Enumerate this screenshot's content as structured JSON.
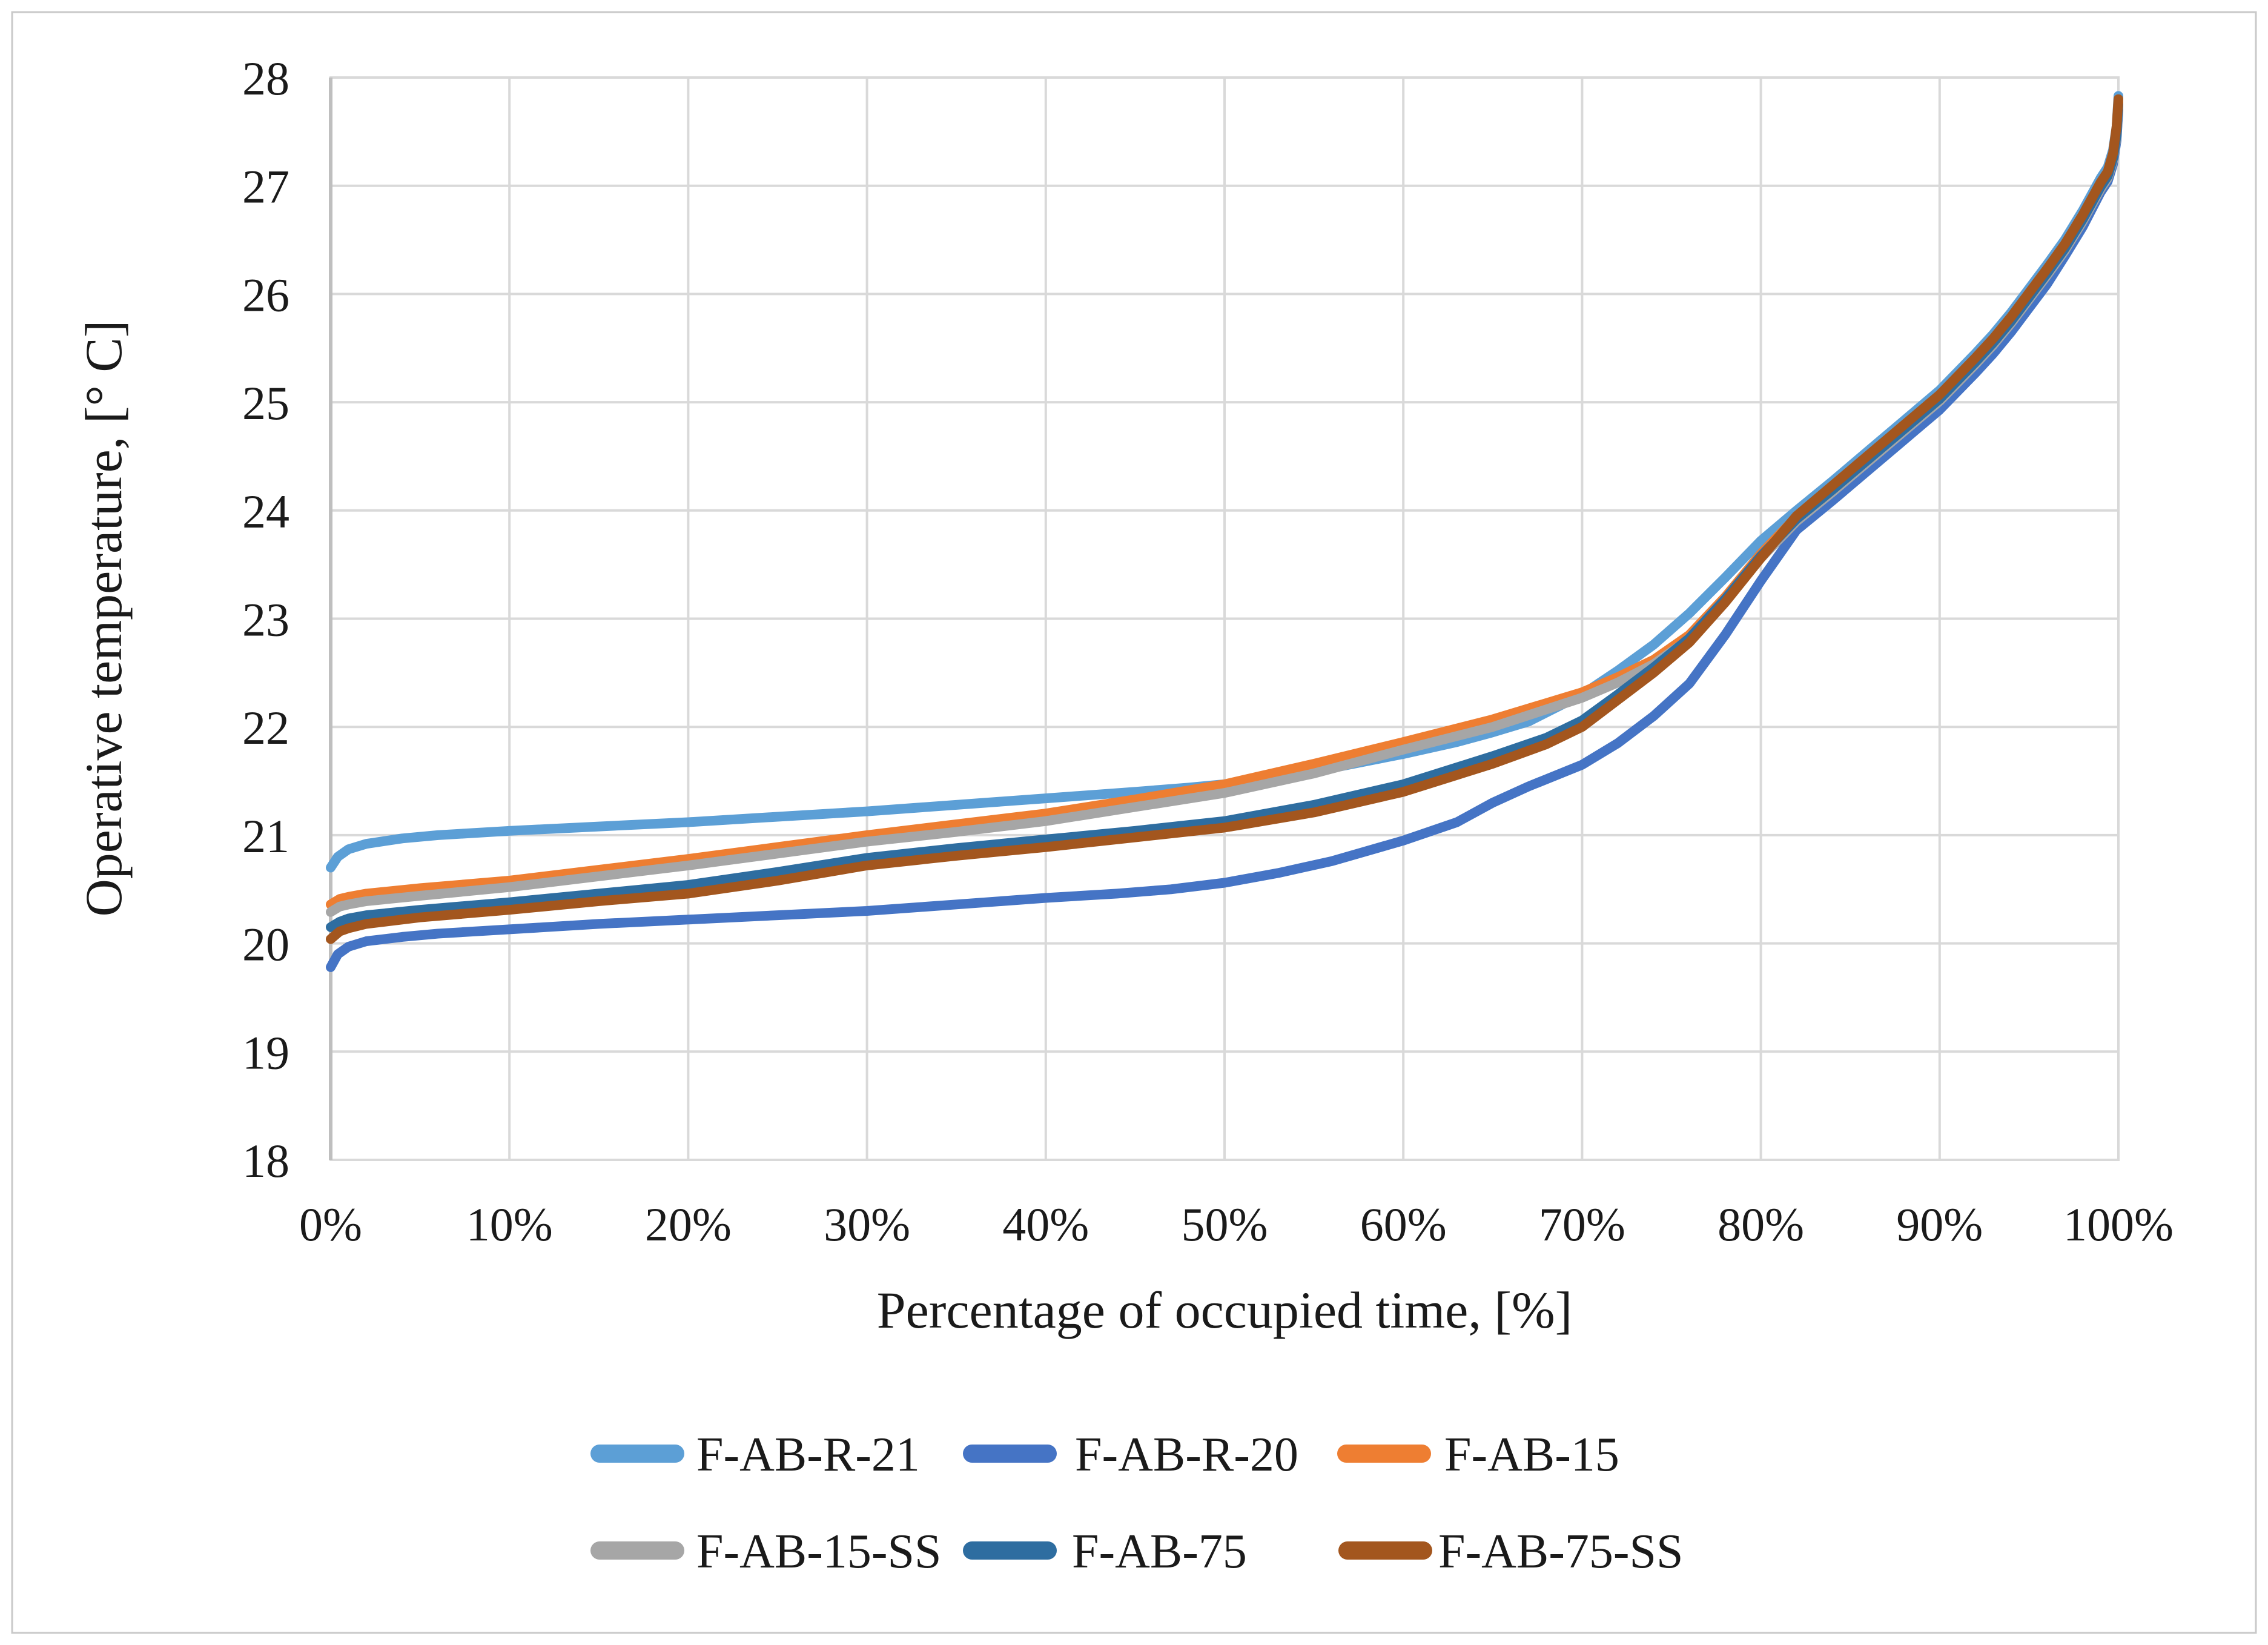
{
  "chart_data": {
    "type": "line",
    "title": "",
    "xlabel": "Percentage of occupied time, [%]",
    "ylabel": "Operative temperature, [° C]",
    "xlim": [
      0,
      100
    ],
    "ylim": [
      18,
      28
    ],
    "grid": "on",
    "legend_position": "bottom",
    "x_ticks": [
      {
        "value": 0,
        "label": "0%"
      },
      {
        "value": 10,
        "label": "10%"
      },
      {
        "value": 20,
        "label": "20%"
      },
      {
        "value": 30,
        "label": "30%"
      },
      {
        "value": 40,
        "label": "40%"
      },
      {
        "value": 50,
        "label": "50%"
      },
      {
        "value": 60,
        "label": "60%"
      },
      {
        "value": 70,
        "label": "70%"
      },
      {
        "value": 80,
        "label": "80%"
      },
      {
        "value": 90,
        "label": "90%"
      },
      {
        "value": 100,
        "label": "100%"
      }
    ],
    "y_ticks": [
      {
        "value": 18,
        "label": "18"
      },
      {
        "value": 19,
        "label": "19"
      },
      {
        "value": 20,
        "label": "20"
      },
      {
        "value": 21,
        "label": "21"
      },
      {
        "value": 22,
        "label": "22"
      },
      {
        "value": 23,
        "label": "23"
      },
      {
        "value": 24,
        "label": "24"
      },
      {
        "value": 25,
        "label": "25"
      },
      {
        "value": 26,
        "label": "26"
      },
      {
        "value": 27,
        "label": "27"
      },
      {
        "value": 28,
        "label": "28"
      }
    ],
    "series": [
      {
        "name": "F-AB-R-21",
        "color": "#5C9FD6",
        "points": [
          [
            0,
            20.7
          ],
          [
            0.4,
            20.8
          ],
          [
            1,
            20.87
          ],
          [
            2,
            20.92
          ],
          [
            4,
            20.97
          ],
          [
            6,
            21.0
          ],
          [
            10,
            21.04
          ],
          [
            15,
            21.08
          ],
          [
            20,
            21.12
          ],
          [
            25,
            21.17
          ],
          [
            30,
            21.22
          ],
          [
            35,
            21.28
          ],
          [
            40,
            21.34
          ],
          [
            45,
            21.4
          ],
          [
            48,
            21.44
          ],
          [
            50,
            21.47
          ],
          [
            53,
            21.52
          ],
          [
            56,
            21.62
          ],
          [
            60,
            21.75
          ],
          [
            63,
            21.86
          ],
          [
            65,
            21.95
          ],
          [
            67,
            22.05
          ],
          [
            70,
            22.3
          ],
          [
            72,
            22.52
          ],
          [
            74,
            22.76
          ],
          [
            76,
            23.05
          ],
          [
            78,
            23.38
          ],
          [
            80,
            23.72
          ],
          [
            82,
            24.0
          ],
          [
            84,
            24.27
          ],
          [
            86,
            24.55
          ],
          [
            88,
            24.83
          ],
          [
            90,
            25.11
          ],
          [
            92,
            25.45
          ],
          [
            93,
            25.63
          ],
          [
            94,
            25.83
          ],
          [
            95,
            26.05
          ],
          [
            96,
            26.27
          ],
          [
            97,
            26.5
          ],
          [
            98,
            26.77
          ],
          [
            99,
            27.07
          ],
          [
            99.4,
            27.17
          ],
          [
            99.7,
            27.33
          ],
          [
            99.9,
            27.55
          ],
          [
            100,
            27.83
          ]
        ]
      },
      {
        "name": "F-AB-R-20",
        "color": "#4574C5",
        "points": [
          [
            0,
            19.78
          ],
          [
            0.4,
            19.9
          ],
          [
            1,
            19.97
          ],
          [
            2,
            20.02
          ],
          [
            4,
            20.06
          ],
          [
            6,
            20.09
          ],
          [
            10,
            20.13
          ],
          [
            15,
            20.18
          ],
          [
            20,
            20.22
          ],
          [
            25,
            20.26
          ],
          [
            30,
            20.3
          ],
          [
            35,
            20.36
          ],
          [
            40,
            20.42
          ],
          [
            44,
            20.46
          ],
          [
            47,
            20.5
          ],
          [
            50,
            20.56
          ],
          [
            53,
            20.65
          ],
          [
            56,
            20.76
          ],
          [
            60,
            20.95
          ],
          [
            63,
            21.12
          ],
          [
            65,
            21.3
          ],
          [
            67,
            21.45
          ],
          [
            70,
            21.65
          ],
          [
            72,
            21.85
          ],
          [
            74,
            22.1
          ],
          [
            76,
            22.4
          ],
          [
            78,
            22.85
          ],
          [
            80,
            23.35
          ],
          [
            82,
            23.82
          ],
          [
            84,
            24.09
          ],
          [
            86,
            24.37
          ],
          [
            88,
            24.65
          ],
          [
            90,
            24.93
          ],
          [
            92,
            25.27
          ],
          [
            93,
            25.45
          ],
          [
            94,
            25.65
          ],
          [
            95,
            25.87
          ],
          [
            96,
            26.09
          ],
          [
            97,
            26.35
          ],
          [
            98,
            26.62
          ],
          [
            99,
            26.94
          ],
          [
            99.4,
            27.04
          ],
          [
            99.7,
            27.2
          ],
          [
            99.9,
            27.42
          ],
          [
            100,
            27.7
          ]
        ]
      },
      {
        "name": "F-AB-15",
        "color": "#EE7E32",
        "points": [
          [
            0,
            20.36
          ],
          [
            0.5,
            20.41
          ],
          [
            1,
            20.43
          ],
          [
            2,
            20.46
          ],
          [
            5,
            20.51
          ],
          [
            10,
            20.58
          ],
          [
            15,
            20.68
          ],
          [
            20,
            20.78
          ],
          [
            25,
            20.89
          ],
          [
            30,
            21.0
          ],
          [
            35,
            21.1
          ],
          [
            40,
            21.2
          ],
          [
            45,
            21.33
          ],
          [
            50,
            21.47
          ],
          [
            55,
            21.66
          ],
          [
            60,
            21.86
          ],
          [
            65,
            22.07
          ],
          [
            70,
            22.32
          ],
          [
            72,
            22.46
          ],
          [
            74,
            22.62
          ],
          [
            76,
            22.85
          ],
          [
            78,
            23.2
          ],
          [
            80,
            23.6
          ],
          [
            82,
            23.94
          ],
          [
            84,
            24.21
          ],
          [
            86,
            24.49
          ],
          [
            88,
            24.77
          ],
          [
            90,
            25.05
          ],
          [
            92,
            25.39
          ],
          [
            93,
            25.57
          ],
          [
            94,
            25.77
          ],
          [
            95,
            25.99
          ],
          [
            96,
            26.21
          ],
          [
            97,
            26.44
          ],
          [
            98,
            26.71
          ],
          [
            99,
            27.01
          ],
          [
            99.4,
            27.11
          ],
          [
            99.7,
            27.27
          ],
          [
            99.9,
            27.49
          ],
          [
            100,
            27.77
          ]
        ]
      },
      {
        "name": "F-AB-15-SS",
        "color": "#A6A6A6",
        "points": [
          [
            0,
            20.29
          ],
          [
            0.5,
            20.34
          ],
          [
            1,
            20.36
          ],
          [
            2,
            20.39
          ],
          [
            5,
            20.44
          ],
          [
            10,
            20.52
          ],
          [
            15,
            20.62
          ],
          [
            20,
            20.72
          ],
          [
            25,
            20.83
          ],
          [
            30,
            20.94
          ],
          [
            35,
            21.03
          ],
          [
            40,
            21.13
          ],
          [
            45,
            21.26
          ],
          [
            50,
            21.39
          ],
          [
            55,
            21.57
          ],
          [
            60,
            21.79
          ],
          [
            65,
            22.0
          ],
          [
            70,
            22.27
          ],
          [
            72,
            22.41
          ],
          [
            74,
            22.58
          ],
          [
            76,
            22.81
          ],
          [
            78,
            23.16
          ],
          [
            80,
            23.56
          ],
          [
            82,
            23.9
          ],
          [
            84,
            24.17
          ],
          [
            86,
            24.45
          ],
          [
            88,
            24.73
          ],
          [
            90,
            25.01
          ],
          [
            92,
            25.35
          ],
          [
            93,
            25.53
          ],
          [
            94,
            25.73
          ],
          [
            95,
            25.95
          ],
          [
            96,
            26.17
          ],
          [
            97,
            26.4
          ],
          [
            98,
            26.67
          ],
          [
            99,
            26.97
          ],
          [
            99.4,
            27.07
          ],
          [
            99.7,
            27.23
          ],
          [
            99.9,
            27.45
          ],
          [
            100,
            27.73
          ]
        ]
      },
      {
        "name": "F-AB-75",
        "color": "#2E6DA0",
        "points": [
          [
            0,
            20.15
          ],
          [
            0.5,
            20.2
          ],
          [
            1,
            20.23
          ],
          [
            2,
            20.26
          ],
          [
            5,
            20.31
          ],
          [
            10,
            20.38
          ],
          [
            15,
            20.46
          ],
          [
            20,
            20.54
          ],
          [
            25,
            20.66
          ],
          [
            30,
            20.79
          ],
          [
            35,
            20.88
          ],
          [
            40,
            20.96
          ],
          [
            45,
            21.04
          ],
          [
            50,
            21.13
          ],
          [
            55,
            21.28
          ],
          [
            60,
            21.47
          ],
          [
            65,
            21.73
          ],
          [
            68,
            21.9
          ],
          [
            70,
            22.06
          ],
          [
            72,
            22.3
          ],
          [
            74,
            22.55
          ],
          [
            76,
            22.82
          ],
          [
            78,
            23.18
          ],
          [
            80,
            23.58
          ],
          [
            82,
            23.92
          ],
          [
            84,
            24.19
          ],
          [
            86,
            24.47
          ],
          [
            88,
            24.75
          ],
          [
            90,
            25.03
          ],
          [
            92,
            25.37
          ],
          [
            93,
            25.55
          ],
          [
            94,
            25.75
          ],
          [
            95,
            25.97
          ],
          [
            96,
            26.19
          ],
          [
            97,
            26.42
          ],
          [
            98,
            26.69
          ],
          [
            99,
            26.99
          ],
          [
            99.4,
            27.09
          ],
          [
            99.7,
            27.25
          ],
          [
            99.9,
            27.47
          ],
          [
            100,
            27.75
          ]
        ]
      },
      {
        "name": "F-AB-75-SS",
        "color": "#A3561E",
        "points": [
          [
            0,
            20.04
          ],
          [
            0.5,
            20.11
          ],
          [
            1,
            20.14
          ],
          [
            2,
            20.18
          ],
          [
            5,
            20.24
          ],
          [
            10,
            20.31
          ],
          [
            15,
            20.39
          ],
          [
            20,
            20.46
          ],
          [
            25,
            20.58
          ],
          [
            30,
            20.72
          ],
          [
            35,
            20.81
          ],
          [
            40,
            20.89
          ],
          [
            45,
            20.98
          ],
          [
            50,
            21.07
          ],
          [
            55,
            21.21
          ],
          [
            60,
            21.4
          ],
          [
            65,
            21.66
          ],
          [
            68,
            21.84
          ],
          [
            70,
            22.0
          ],
          [
            72,
            22.25
          ],
          [
            74,
            22.5
          ],
          [
            76,
            22.78
          ],
          [
            78,
            23.15
          ],
          [
            80,
            23.56
          ],
          [
            82,
            23.95
          ],
          [
            84,
            24.23
          ],
          [
            86,
            24.51
          ],
          [
            88,
            24.79
          ],
          [
            90,
            25.07
          ],
          [
            92,
            25.41
          ],
          [
            93,
            25.59
          ],
          [
            94,
            25.79
          ],
          [
            95,
            26.01
          ],
          [
            96,
            26.23
          ],
          [
            97,
            26.46
          ],
          [
            98,
            26.73
          ],
          [
            99,
            27.03
          ],
          [
            99.4,
            27.13
          ],
          [
            99.7,
            27.3
          ],
          [
            99.9,
            27.55
          ],
          [
            100,
            27.8
          ]
        ]
      }
    ]
  },
  "style_colors": {
    "gridline": "#D9D9D9",
    "plot_border": "#D9D9D9",
    "axis_line": "#BFBFBF",
    "page_border": "#C9C9C9",
    "text": "#1a1a1a"
  }
}
